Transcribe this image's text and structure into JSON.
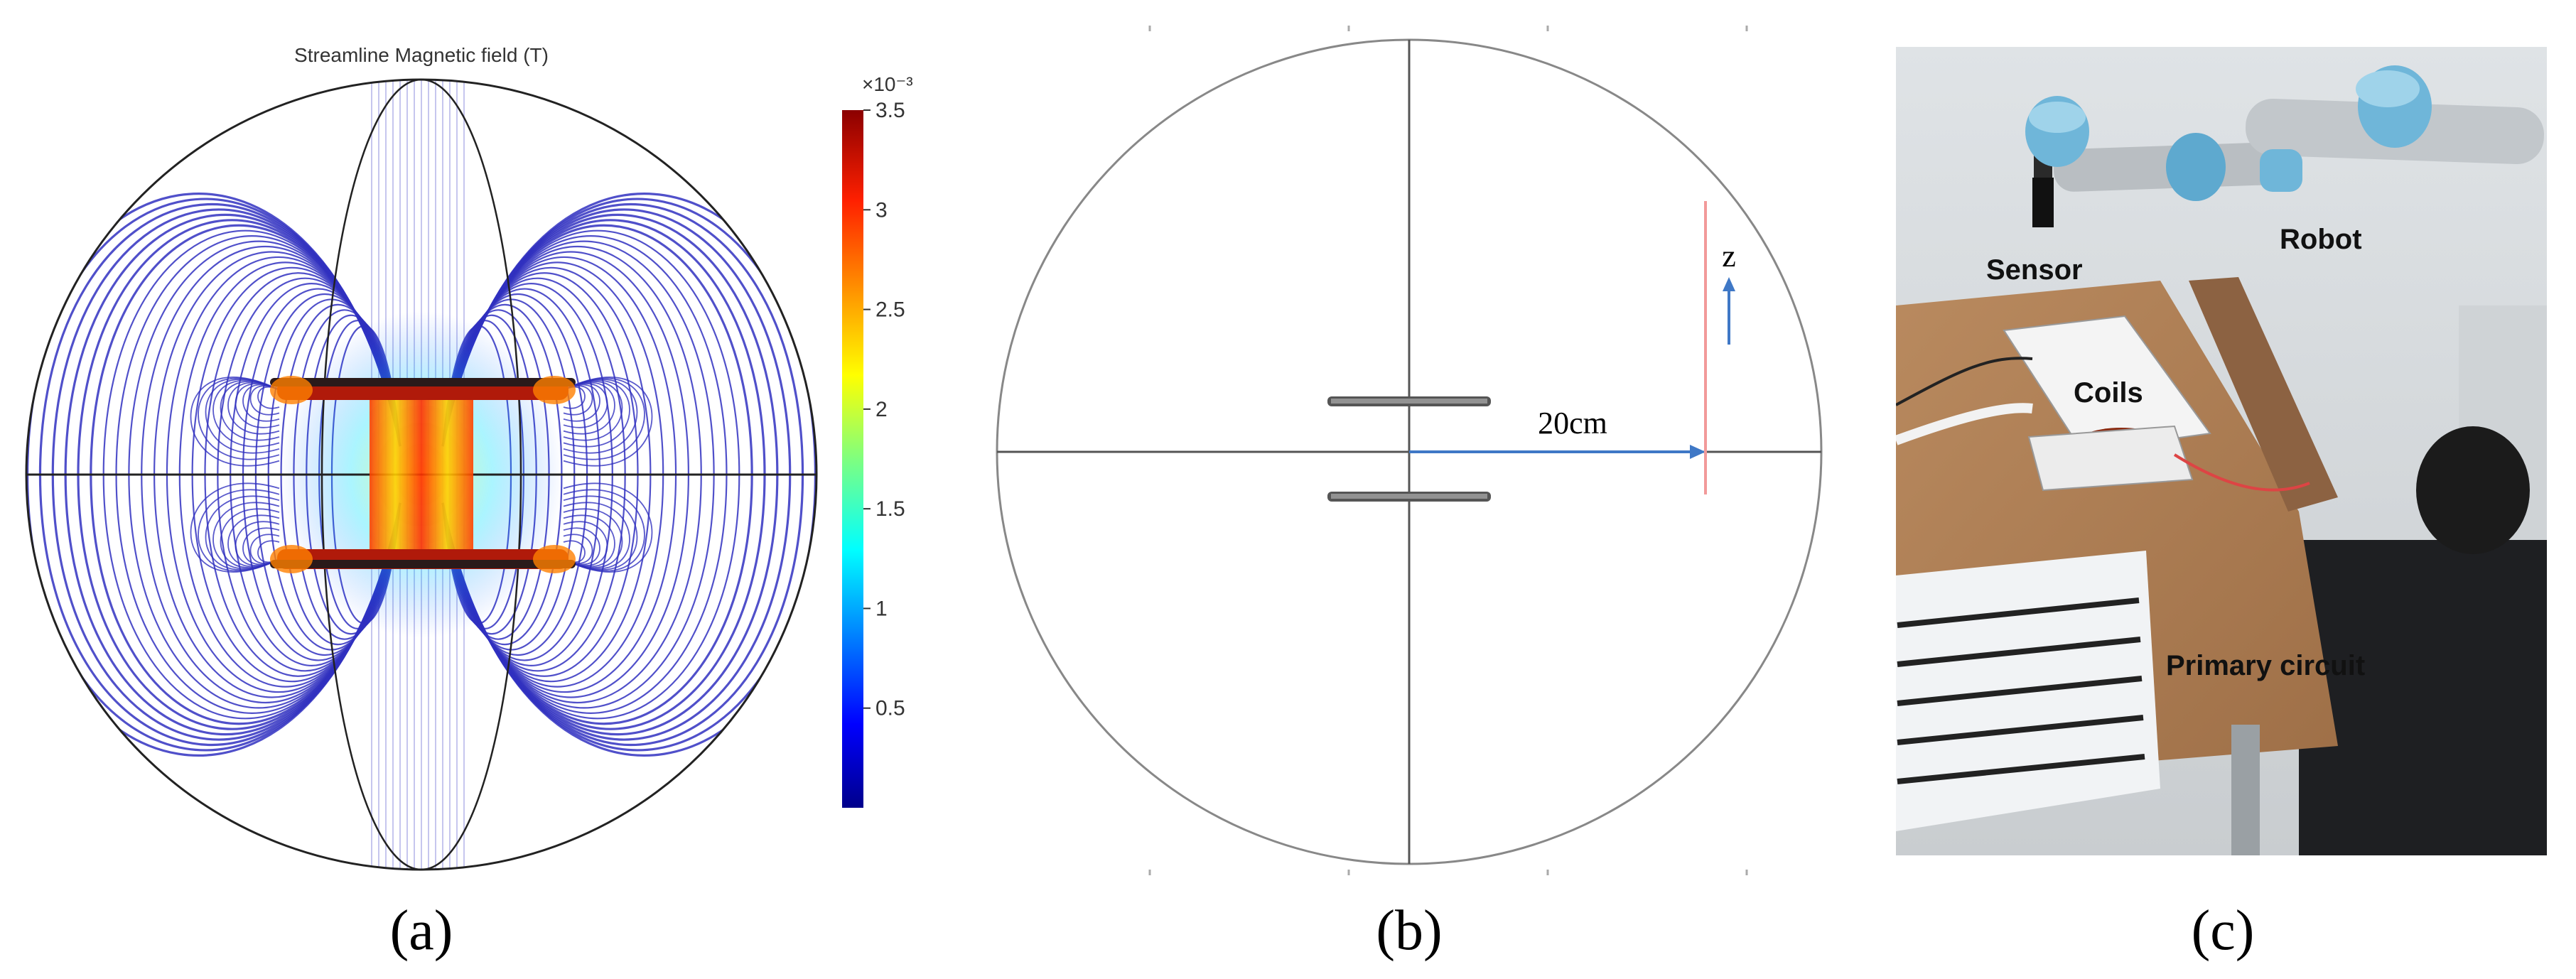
{
  "panel_a": {
    "title": "Streamline Magnetic field (T)",
    "colorbar": {
      "exponent_label": "×10⁻³",
      "ticks": [
        "3.5",
        "3",
        "2.5",
        "2",
        "1.5",
        "1",
        "0.5"
      ],
      "tick_values": [
        3.5,
        3,
        2.5,
        2,
        1.5,
        1,
        0.5
      ],
      "max": 3.5,
      "min": 0
    },
    "label": "(a)"
  },
  "panel_b": {
    "distance_label": "20cm",
    "axis_label": "z",
    "label": "(b)"
  },
  "panel_c": {
    "labels": {
      "sensor": "Sensor",
      "robot": "Robot",
      "coils": "Coils",
      "primary_circuit": "Primary circuit"
    },
    "label": "(c)"
  },
  "colors": {
    "streamline_blue": "#1a1ab8",
    "arrow_blue": "#3f78c6",
    "sensor_line": "#f29a9a",
    "colorbar_top": "#8b0000",
    "colorbar_bottom": "#00008b"
  }
}
